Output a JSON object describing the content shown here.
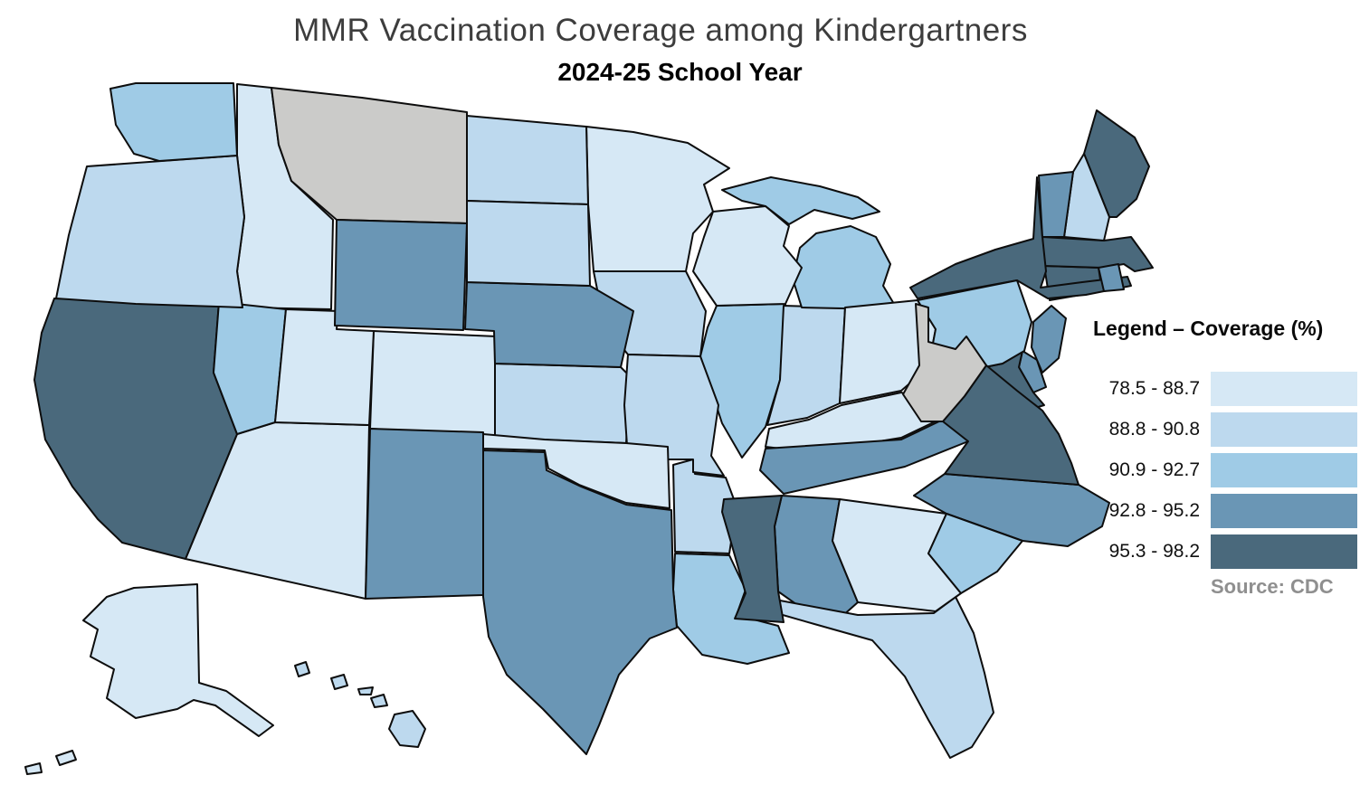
{
  "title": "MMR Vaccination Coverage among Kindergartners",
  "subtitle": "2024-25 School Year",
  "legend": {
    "title": "Legend – Coverage (%)",
    "source": "Source: CDC",
    "no_data_color": "#cbcbc9",
    "bins": [
      {
        "label": "78.5 - 88.7",
        "color": "#d6e8f5"
      },
      {
        "label": "88.8 - 90.8",
        "color": "#bdd9ee"
      },
      {
        "label": "90.9 - 92.7",
        "color": "#9fcbe6"
      },
      {
        "label": "92.8 - 95.2",
        "color": "#6a96b5"
      },
      {
        "label": "95.3 - 98.2",
        "color": "#4a697c"
      }
    ]
  },
  "chart_data": {
    "type": "choropleth",
    "geography": "United States (50 states)",
    "unit": "percent MMR coverage",
    "bin_labels": [
      "78.5 - 88.7",
      "88.8 - 90.8",
      "90.9 - 92.7",
      "92.8 - 95.2",
      "95.3 - 98.2"
    ],
    "states": [
      {
        "abbr": "AL",
        "name": "Alabama",
        "bin": 3,
        "range": "92.8 - 95.2"
      },
      {
        "abbr": "AK",
        "name": "Alaska",
        "bin": 0,
        "range": "78.5 - 88.7"
      },
      {
        "abbr": "AZ",
        "name": "Arizona",
        "bin": 0,
        "range": "78.5 - 88.7"
      },
      {
        "abbr": "AR",
        "name": "Arkansas",
        "bin": 1,
        "range": "88.8 - 90.8"
      },
      {
        "abbr": "CA",
        "name": "California",
        "bin": 4,
        "range": "95.3 - 98.2"
      },
      {
        "abbr": "CO",
        "name": "Colorado",
        "bin": 0,
        "range": "78.5 - 88.7"
      },
      {
        "abbr": "CT",
        "name": "Connecticut",
        "bin": 4,
        "range": "95.3 - 98.2"
      },
      {
        "abbr": "DE",
        "name": "Delaware",
        "bin": 3,
        "range": "92.8 - 95.2"
      },
      {
        "abbr": "FL",
        "name": "Florida",
        "bin": 1,
        "range": "88.8 - 90.8"
      },
      {
        "abbr": "GA",
        "name": "Georgia",
        "bin": 0,
        "range": "78.5 - 88.7"
      },
      {
        "abbr": "HI",
        "name": "Hawaii",
        "bin": 1,
        "range": "88.8 - 90.8"
      },
      {
        "abbr": "ID",
        "name": "Idaho",
        "bin": 0,
        "range": "78.5 - 88.7"
      },
      {
        "abbr": "IL",
        "name": "Illinois",
        "bin": 2,
        "range": "90.9 - 92.7"
      },
      {
        "abbr": "IN",
        "name": "Indiana",
        "bin": 1,
        "range": "88.8 - 90.8"
      },
      {
        "abbr": "IA",
        "name": "Iowa",
        "bin": 1,
        "range": "88.8 - 90.8"
      },
      {
        "abbr": "KS",
        "name": "Kansas",
        "bin": 1,
        "range": "88.8 - 90.8"
      },
      {
        "abbr": "KY",
        "name": "Kentucky",
        "bin": 0,
        "range": "78.5 - 88.7"
      },
      {
        "abbr": "LA",
        "name": "Louisiana",
        "bin": 2,
        "range": "90.9 - 92.7"
      },
      {
        "abbr": "ME",
        "name": "Maine",
        "bin": 4,
        "range": "95.3 - 98.2"
      },
      {
        "abbr": "MD",
        "name": "Maryland",
        "bin": 4,
        "range": "95.3 - 98.2"
      },
      {
        "abbr": "MA",
        "name": "Massachusetts",
        "bin": 4,
        "range": "95.3 - 98.2"
      },
      {
        "abbr": "MI",
        "name": "Michigan",
        "bin": 2,
        "range": "90.9 - 92.7"
      },
      {
        "abbr": "MN",
        "name": "Minnesota",
        "bin": 0,
        "range": "78.5 - 88.7"
      },
      {
        "abbr": "MS",
        "name": "Mississippi",
        "bin": 4,
        "range": "95.3 - 98.2"
      },
      {
        "abbr": "MO",
        "name": "Missouri",
        "bin": 1,
        "range": "88.8 - 90.8"
      },
      {
        "abbr": "MT",
        "name": "Montana",
        "bin": "no_data",
        "range": "no data"
      },
      {
        "abbr": "NE",
        "name": "Nebraska",
        "bin": 3,
        "range": "92.8 - 95.2"
      },
      {
        "abbr": "NV",
        "name": "Nevada",
        "bin": 2,
        "range": "90.9 - 92.7"
      },
      {
        "abbr": "NH",
        "name": "New Hampshire",
        "bin": 1,
        "range": "88.8 - 90.8"
      },
      {
        "abbr": "NJ",
        "name": "New Jersey",
        "bin": 3,
        "range": "92.8 - 95.2"
      },
      {
        "abbr": "NM",
        "name": "New Mexico",
        "bin": 3,
        "range": "92.8 - 95.2"
      },
      {
        "abbr": "NY",
        "name": "New York",
        "bin": 4,
        "range": "95.3 - 98.2"
      },
      {
        "abbr": "NC",
        "name": "North Carolina",
        "bin": 3,
        "range": "92.8 - 95.2"
      },
      {
        "abbr": "ND",
        "name": "North Dakota",
        "bin": 1,
        "range": "88.8 - 90.8"
      },
      {
        "abbr": "OH",
        "name": "Ohio",
        "bin": 0,
        "range": "78.5 - 88.7"
      },
      {
        "abbr": "OK",
        "name": "Oklahoma",
        "bin": 0,
        "range": "78.5 - 88.7"
      },
      {
        "abbr": "OR",
        "name": "Oregon",
        "bin": 1,
        "range": "88.8 - 90.8"
      },
      {
        "abbr": "PA",
        "name": "Pennsylvania",
        "bin": 2,
        "range": "90.9 - 92.7"
      },
      {
        "abbr": "RI",
        "name": "Rhode Island",
        "bin": 3,
        "range": "92.8 - 95.2"
      },
      {
        "abbr": "SC",
        "name": "South Carolina",
        "bin": 2,
        "range": "90.9 - 92.7"
      },
      {
        "abbr": "SD",
        "name": "South Dakota",
        "bin": 1,
        "range": "88.8 - 90.8"
      },
      {
        "abbr": "TN",
        "name": "Tennessee",
        "bin": 3,
        "range": "92.8 - 95.2"
      },
      {
        "abbr": "TX",
        "name": "Texas",
        "bin": 3,
        "range": "92.8 - 95.2"
      },
      {
        "abbr": "UT",
        "name": "Utah",
        "bin": 0,
        "range": "78.5 - 88.7"
      },
      {
        "abbr": "VT",
        "name": "Vermont",
        "bin": 3,
        "range": "92.8 - 95.2"
      },
      {
        "abbr": "VA",
        "name": "Virginia",
        "bin": 4,
        "range": "95.3 - 98.2"
      },
      {
        "abbr": "WA",
        "name": "Washington",
        "bin": 2,
        "range": "90.9 - 92.7"
      },
      {
        "abbr": "WV",
        "name": "West Virginia",
        "bin": "no_data",
        "range": "no data"
      },
      {
        "abbr": "WI",
        "name": "Wisconsin",
        "bin": 0,
        "range": "78.5 - 88.7"
      },
      {
        "abbr": "WY",
        "name": "Wyoming",
        "bin": 3,
        "range": "92.8 - 95.2"
      }
    ]
  }
}
